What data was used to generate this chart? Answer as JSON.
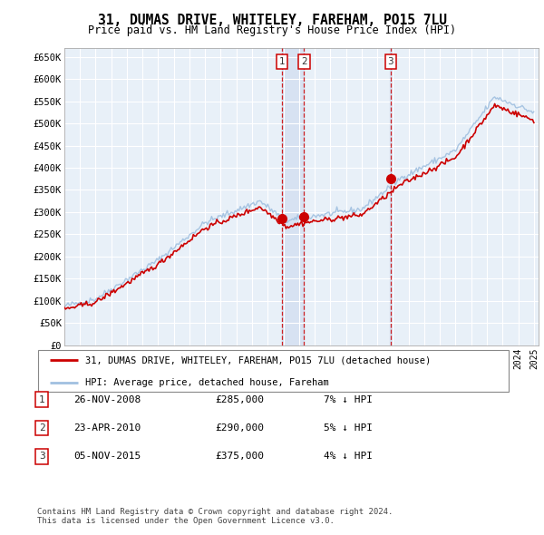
{
  "title": "31, DUMAS DRIVE, WHITELEY, FAREHAM, PO15 7LU",
  "subtitle": "Price paid vs. HM Land Registry's House Price Index (HPI)",
  "ylabel_ticks": [
    "£0",
    "£50K",
    "£100K",
    "£150K",
    "£200K",
    "£250K",
    "£300K",
    "£350K",
    "£400K",
    "£450K",
    "£500K",
    "£550K",
    "£600K",
    "£650K"
  ],
  "ytick_values": [
    0,
    50000,
    100000,
    150000,
    200000,
    250000,
    300000,
    350000,
    400000,
    450000,
    500000,
    550000,
    600000,
    650000
  ],
  "xmin": 1995.0,
  "xmax": 2025.3,
  "ymin": 0,
  "ymax": 670000,
  "sale_markers": [
    {
      "label": "1",
      "date": 2008.92,
      "price": 285000
    },
    {
      "label": "2",
      "date": 2010.32,
      "price": 290000
    },
    {
      "label": "3",
      "date": 2015.85,
      "price": 375000
    }
  ],
  "legend_entries": [
    {
      "label": "31, DUMAS DRIVE, WHITELEY, FAREHAM, PO15 7LU (detached house)",
      "color": "#cc0000"
    },
    {
      "label": "HPI: Average price, detached house, Fareham",
      "color": "#6699cc"
    }
  ],
  "table_rows": [
    {
      "num": "1",
      "date": "26-NOV-2008",
      "price": "£285,000",
      "hpi": "7% ↓ HPI"
    },
    {
      "num": "2",
      "date": "23-APR-2010",
      "price": "£290,000",
      "hpi": "5% ↓ HPI"
    },
    {
      "num": "3",
      "date": "05-NOV-2015",
      "price": "£375,000",
      "hpi": "4% ↓ HPI"
    }
  ],
  "footnote": "Contains HM Land Registry data © Crown copyright and database right 2024.\nThis data is licensed under the Open Government Licence v3.0.",
  "bg_color": "#ffffff",
  "plot_bg_color": "#e8f0f8",
  "grid_color": "#ffffff",
  "vline_color": "#cc0000",
  "shade_color": "#ccd9ee"
}
